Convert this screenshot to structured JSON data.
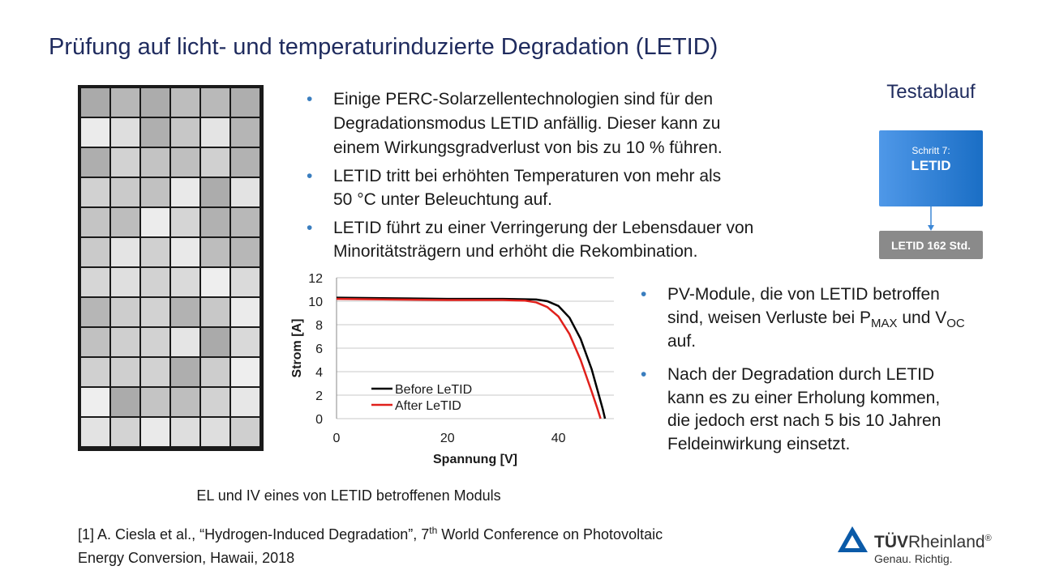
{
  "title": "Prüfung auf licht- und temperaturinduzierte Degradation (LETID)",
  "bullets_top": [
    [
      "Einige PERC-Solarzellentechnologien sind für den",
      "Degradationsmodus LETID anfällig. Dieser kann zu",
      "einem Wirkungsgradverlust von bis zu 10 % führen."
    ],
    [
      "LETID tritt bei erhöhten Temperaturen von mehr als",
      "50 °C unter Beleuchtung auf."
    ],
    [
      "LETID führt zu einer Verringerung der Lebensdauer von",
      "Minoritätsträgern und erhöht die Rekombination."
    ]
  ],
  "bullets_right": [
    [
      "PV-Module, die von LETID betroffen",
      [
        "sind, weisen Verluste bei P",
        "MAX",
        " und V",
        "OC"
      ],
      "auf."
    ],
    [
      "Nach der Degradation durch LETID",
      "kann es zu einer Erholung kommen,",
      "die jedoch erst nach 5 bis 10 Jahren",
      "Feldeinwirkung einsetzt."
    ]
  ],
  "test_flow": {
    "heading": "Testablauf",
    "step_label": "Schritt 7:",
    "step_name": "LETID",
    "duration": "LETID 162 Std."
  },
  "caption": "EL und IV eines von LETID betroffenen Moduls",
  "reference": [
    "[1] A. Ciesla et al., “Hydrogen-Induced Degradation”, 7",
    "th",
    " World Conference on Photovoltaic",
    "Energy Conversion, Hawaii, 2018"
  ],
  "logo": {
    "brand_bold": "TÜV",
    "brand": "Rheinland",
    "mark": "®",
    "slogan": "Genau. Richtig."
  },
  "chart_data": {
    "type": "line",
    "xlabel": "Spannung [V]",
    "ylabel": "Strom [A]",
    "xlim": [
      0,
      50
    ],
    "xticks": [
      0,
      20,
      40
    ],
    "ylim": [
      0,
      12
    ],
    "yticks": [
      0,
      2,
      4,
      6,
      8,
      10,
      12
    ],
    "grid": true,
    "series": [
      {
        "name": "Before LeTID",
        "color": "#000000",
        "x": [
          0,
          10,
          20,
          30,
          36,
          38,
          40,
          42,
          44,
          46,
          47,
          48,
          48.4
        ],
        "values": [
          10.3,
          10.25,
          10.2,
          10.2,
          10.15,
          10.0,
          9.6,
          8.6,
          6.8,
          4.2,
          2.5,
          0.8,
          0
        ]
      },
      {
        "name": "After LeTID",
        "color": "#e0201b",
        "x": [
          0,
          10,
          20,
          30,
          34,
          36,
          38,
          40,
          42,
          44,
          46,
          47,
          47.6
        ],
        "values": [
          10.2,
          10.15,
          10.1,
          10.1,
          10.05,
          9.9,
          9.5,
          8.7,
          7.2,
          5.0,
          2.3,
          0.9,
          0
        ]
      }
    ]
  }
}
